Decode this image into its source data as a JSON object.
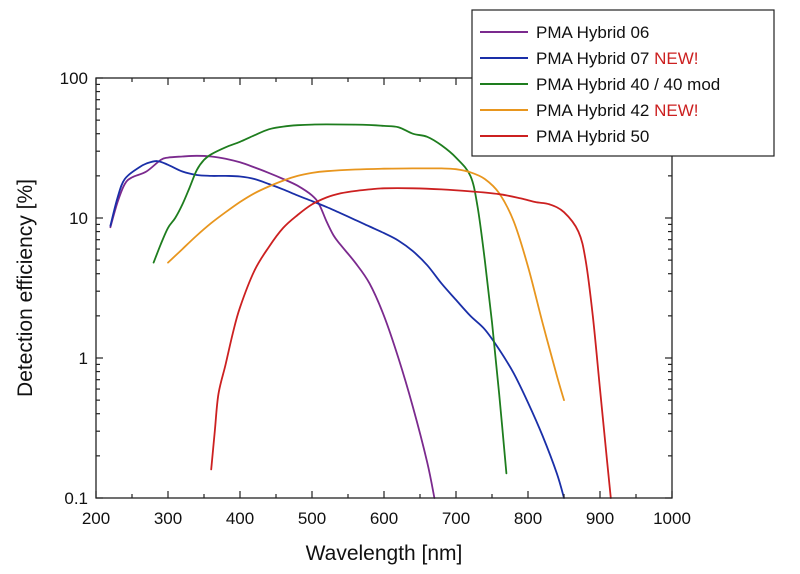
{
  "chart_data": {
    "type": "line",
    "title": "",
    "xlabel": "Wavelength [nm]",
    "ylabel": "Detection efficiency [%]",
    "xlim": [
      200,
      1000
    ],
    "ylim": [
      0.1,
      100
    ],
    "yscale": "log",
    "x_ticks": [
      200,
      300,
      400,
      500,
      600,
      700,
      800,
      900,
      1000
    ],
    "y_ticks": [
      {
        "value": 0.1,
        "label": "0.1"
      },
      {
        "value": 1,
        "label": "1"
      },
      {
        "value": 10,
        "label": "10"
      },
      {
        "value": 100,
        "label": "100"
      }
    ],
    "grid": false,
    "legend_position": "top-right",
    "series": [
      {
        "name": "PMA Hybrid 06",
        "badge": "",
        "color": "#7b2a8e",
        "points": [
          [
            220,
            8.6
          ],
          [
            230,
            13
          ],
          [
            240,
            17.5
          ],
          [
            250,
            19.5
          ],
          [
            270,
            21.5
          ],
          [
            290,
            26
          ],
          [
            300,
            27
          ],
          [
            320,
            27.5
          ],
          [
            340,
            27.8
          ],
          [
            360,
            27.5
          ],
          [
            380,
            26.5
          ],
          [
            400,
            25
          ],
          [
            420,
            23
          ],
          [
            440,
            21
          ],
          [
            460,
            19
          ],
          [
            480,
            17
          ],
          [
            500,
            14.5
          ],
          [
            510,
            12.5
          ],
          [
            520,
            9.5
          ],
          [
            530,
            7.5
          ],
          [
            540,
            6.4
          ],
          [
            560,
            4.8
          ],
          [
            580,
            3.4
          ],
          [
            600,
            2
          ],
          [
            620,
            1
          ],
          [
            640,
            0.45
          ],
          [
            660,
            0.18
          ],
          [
            670,
            0.1
          ]
        ]
      },
      {
        "name": "PMA Hybrid 07",
        "badge": "NEW!",
        "color": "#1a2fa8",
        "points": [
          [
            220,
            8.8
          ],
          [
            230,
            14
          ],
          [
            240,
            19
          ],
          [
            260,
            23
          ],
          [
            270,
            24.5
          ],
          [
            285,
            25.5
          ],
          [
            300,
            24
          ],
          [
            320,
            21.5
          ],
          [
            340,
            20.3
          ],
          [
            360,
            20
          ],
          [
            380,
            20
          ],
          [
            400,
            19.8
          ],
          [
            420,
            19
          ],
          [
            440,
            17.5
          ],
          [
            460,
            16
          ],
          [
            480,
            14.5
          ],
          [
            500,
            13.2
          ],
          [
            520,
            12
          ],
          [
            540,
            10.8
          ],
          [
            560,
            9.7
          ],
          [
            580,
            8.7
          ],
          [
            600,
            7.8
          ],
          [
            620,
            6.9
          ],
          [
            640,
            5.8
          ],
          [
            660,
            4.6
          ],
          [
            680,
            3.4
          ],
          [
            700,
            2.6
          ],
          [
            720,
            2
          ],
          [
            740,
            1.6
          ],
          [
            760,
            1.15
          ],
          [
            780,
            0.78
          ],
          [
            800,
            0.48
          ],
          [
            820,
            0.28
          ],
          [
            840,
            0.15
          ],
          [
            850,
            0.1
          ]
        ]
      },
      {
        "name": "PMA Hybrid 40 / 40 mod",
        "badge": "",
        "color": "#1e7d1e",
        "points": [
          [
            280,
            4.8
          ],
          [
            290,
            6.5
          ],
          [
            300,
            8.5
          ],
          [
            310,
            10
          ],
          [
            320,
            12.5
          ],
          [
            330,
            16.5
          ],
          [
            340,
            22
          ],
          [
            350,
            26
          ],
          [
            360,
            28.5
          ],
          [
            380,
            32
          ],
          [
            400,
            35
          ],
          [
            420,
            39
          ],
          [
            440,
            43
          ],
          [
            460,
            45
          ],
          [
            480,
            46
          ],
          [
            500,
            46.5
          ],
          [
            520,
            46.6
          ],
          [
            560,
            46.5
          ],
          [
            580,
            46.2
          ],
          [
            600,
            45.5
          ],
          [
            620,
            44.5
          ],
          [
            640,
            40
          ],
          [
            660,
            38
          ],
          [
            680,
            33
          ],
          [
            700,
            27
          ],
          [
            720,
            20
          ],
          [
            730,
            12
          ],
          [
            740,
            5
          ],
          [
            750,
            1.8
          ],
          [
            760,
            0.55
          ],
          [
            770,
            0.15
          ]
        ]
      },
      {
        "name": "PMA Hybrid 42",
        "badge": "NEW!",
        "color": "#e8961e",
        "points": [
          [
            300,
            4.8
          ],
          [
            320,
            6
          ],
          [
            340,
            7.5
          ],
          [
            360,
            9.2
          ],
          [
            380,
            11
          ],
          [
            400,
            13
          ],
          [
            420,
            15
          ],
          [
            440,
            16.8
          ],
          [
            460,
            18.5
          ],
          [
            480,
            20
          ],
          [
            500,
            21
          ],
          [
            520,
            21.6
          ],
          [
            560,
            22.2
          ],
          [
            600,
            22.5
          ],
          [
            640,
            22.6
          ],
          [
            680,
            22.6
          ],
          [
            700,
            22.3
          ],
          [
            720,
            21.2
          ],
          [
            740,
            19
          ],
          [
            760,
            15
          ],
          [
            780,
            9.5
          ],
          [
            800,
            4.5
          ],
          [
            820,
            1.8
          ],
          [
            840,
            0.75
          ],
          [
            850,
            0.5
          ]
        ]
      },
      {
        "name": "PMA Hybrid 50",
        "badge": "",
        "color": "#cc2020",
        "points": [
          [
            360,
            0.16
          ],
          [
            365,
            0.3
          ],
          [
            370,
            0.55
          ],
          [
            380,
            0.9
          ],
          [
            390,
            1.5
          ],
          [
            400,
            2.3
          ],
          [
            420,
            4.2
          ],
          [
            440,
            6.2
          ],
          [
            460,
            8.5
          ],
          [
            480,
            10.5
          ],
          [
            500,
            12.5
          ],
          [
            520,
            14
          ],
          [
            540,
            15
          ],
          [
            560,
            15.6
          ],
          [
            580,
            16
          ],
          [
            600,
            16.3
          ],
          [
            640,
            16.3
          ],
          [
            680,
            16
          ],
          [
            720,
            15.5
          ],
          [
            760,
            14.8
          ],
          [
            790,
            13.8
          ],
          [
            810,
            13
          ],
          [
            830,
            12.5
          ],
          [
            850,
            11
          ],
          [
            870,
            8
          ],
          [
            880,
            5
          ],
          [
            890,
            2
          ],
          [
            900,
            0.6
          ],
          [
            910,
            0.18
          ],
          [
            915,
            0.1
          ]
        ]
      }
    ]
  },
  "legend_badge_color": "#cc2020"
}
